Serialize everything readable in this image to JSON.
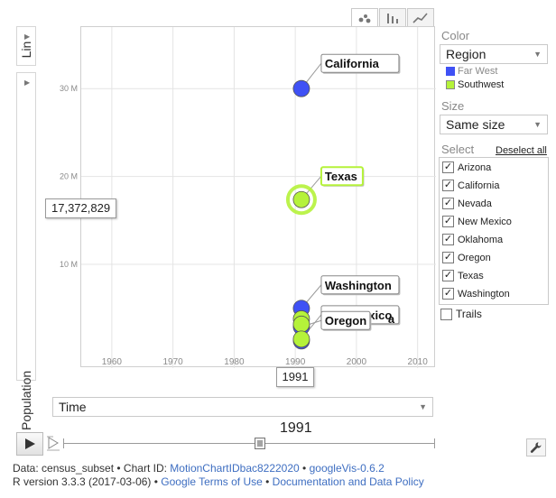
{
  "axis_toggles": {
    "y_scale": "Lin",
    "y_label": "Population",
    "x_select": "Time"
  },
  "chart_tabs": [
    {
      "name": "bubbles",
      "icon": "bubble-chart-icon",
      "active": true
    },
    {
      "name": "bars",
      "icon": "bar-chart-icon",
      "active": false
    },
    {
      "name": "lines",
      "icon": "line-chart-icon",
      "active": false
    }
  ],
  "chart_data": {
    "type": "scatter",
    "title": "",
    "xlabel": "Time",
    "ylabel": "Population",
    "xlim": [
      1955,
      2013
    ],
    "ylim": [
      -1800000,
      37000000
    ],
    "x_ticks": [
      1960,
      1970,
      1980,
      1990,
      2000,
      2010
    ],
    "x_tick_labels": [
      "1960",
      "1970",
      "1980",
      "1990",
      "2000",
      "2010"
    ],
    "y_ticks": [
      10000000,
      20000000,
      30000000
    ],
    "y_tick_labels": [
      "10 M",
      "20 M",
      "30 M"
    ],
    "grid": true,
    "current_x": 1991,
    "current_x_label": "1991",
    "hover_value_label": "17,372,829",
    "series": [
      {
        "name": "Far West",
        "color": "#3f51f5",
        "points": [
          {
            "label": "California",
            "x": 1991,
            "y": 30000000,
            "label_shown": true
          },
          {
            "label": "Washington",
            "x": 1991,
            "y": 5000000,
            "label_shown": true
          },
          {
            "label": "Oregon",
            "x": 1991,
            "y": 2900000,
            "label_shown": true
          },
          {
            "label": "Nevada",
            "x": 1991,
            "y": 1300000,
            "label_shown": false
          }
        ]
      },
      {
        "name": "Southwest",
        "color": "#b5f23a",
        "points": [
          {
            "label": "Texas",
            "x": 1991,
            "y": 17372829,
            "label_shown": true,
            "highlighted": true
          },
          {
            "label": "Arizona",
            "x": 1991,
            "y": 3800000,
            "label_shown": false
          },
          {
            "label": "Oklahoma",
            "x": 1991,
            "y": 3200000,
            "label_shown": false
          },
          {
            "label": "New Mexico",
            "x": 1991,
            "y": 1500000,
            "label_shown": true
          }
        ]
      }
    ],
    "hidden_label_fragment": "a"
  },
  "panel": {
    "color_label": "Color",
    "color_value": "Region",
    "legend": [
      {
        "label": "Far West",
        "color": "#3f51f5"
      },
      {
        "label": "Southwest",
        "color": "#b5f23a"
      }
    ],
    "size_label": "Size",
    "size_value": "Same size",
    "select_label": "Select",
    "deselect_all": "Deselect all",
    "items": [
      {
        "label": "Arizona",
        "checked": true
      },
      {
        "label": "California",
        "checked": true
      },
      {
        "label": "Nevada",
        "checked": true
      },
      {
        "label": "New Mexico",
        "checked": true
      },
      {
        "label": "Oklahoma",
        "checked": true
      },
      {
        "label": "Oregon",
        "checked": true
      },
      {
        "label": "Texas",
        "checked": true
      },
      {
        "label": "Washington",
        "checked": true
      }
    ],
    "trails_label": "Trails",
    "trails_checked": false
  },
  "playback": {
    "year_label": "1991",
    "slider_fraction": 0.53
  },
  "footer": {
    "line1": {
      "data_prefix": "Data: census_subset • Chart ID: ",
      "chart_id": "MotionChartIDbac8222020",
      "sep": " • ",
      "version_link": "googleVis-0.6.2"
    },
    "line2": {
      "r_version": "R version 3.3.3 (2017-03-06) • ",
      "terms_link": "Google Terms of Use",
      "sep": " • ",
      "doc_link": "Documentation and Data Policy"
    }
  }
}
